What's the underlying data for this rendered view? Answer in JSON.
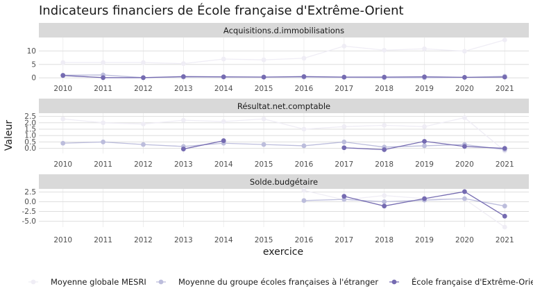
{
  "chart_data": {
    "type": "line",
    "title": "Indicateurs financiers de École française d'Extrême-Orient",
    "xlabel": "exercice",
    "ylabel": "Valeur",
    "x": [
      2010,
      2011,
      2012,
      2013,
      2014,
      2015,
      2016,
      2017,
      2018,
      2019,
      2020,
      2021
    ],
    "legend_position": "bottom",
    "colors": {
      "Moyenne globale MESRI": "#efedf5",
      "Moyenne du groupe écoles françaises à l'étranger": "#bcbddc",
      "École française d'Extrême-Orient": "#756bb1"
    },
    "panels": [
      {
        "title": "Acquisitions.d.immobilisations",
        "ylim": [
          -1.5,
          15
        ],
        "yticks": [
          0,
          5,
          10
        ],
        "series": [
          {
            "name": "Moyenne globale MESRI",
            "values": [
              5.7,
              5.7,
              5.7,
              5.3,
              7.0,
              6.7,
              7.3,
              11.8,
              10.3,
              10.8,
              9.9,
              14.1
            ]
          },
          {
            "name": "Moyenne du groupe écoles françaises à l'étranger",
            "values": [
              1.0,
              1.1,
              0.1,
              0.3,
              0.3,
              0.3,
              0.3,
              0.2,
              0.1,
              0.1,
              0.2,
              0.6
            ]
          },
          {
            "name": "École française d'Extrême-Orient",
            "values": [
              0.9,
              0.1,
              0.1,
              0.5,
              0.4,
              0.3,
              0.5,
              0.3,
              0.3,
              0.4,
              0.2,
              0.3
            ]
          }
        ]
      },
      {
        "title": "Résultat.net.comptable",
        "ylim": [
          -0.4,
          2.75
        ],
        "yticks": [
          0.0,
          0.5,
          1.0,
          1.5,
          2.0,
          2.5
        ],
        "series": [
          {
            "name": "Moyenne globale MESRI",
            "values": [
              2.3,
              2.0,
              1.9,
              2.2,
              2.1,
              2.3,
              1.5,
              1.7,
              1.8,
              1.7,
              2.4,
              -0.2
            ]
          },
          {
            "name": "Moyenne du groupe écoles françaises à l'étranger",
            "values": [
              0.4,
              0.5,
              0.3,
              0.15,
              0.4,
              0.3,
              0.2,
              0.5,
              0.1,
              0.2,
              0.3,
              -0.1
            ]
          },
          {
            "name": "École française d'Extrême-Orient",
            "values": [
              null,
              null,
              null,
              -0.05,
              0.6,
              null,
              null,
              0.05,
              -0.1,
              0.55,
              0.15,
              0.0
            ]
          }
        ]
      },
      {
        "title": "Solde.budgétaire",
        "ylim": [
          -6.5,
          3.3
        ],
        "yticks": [
          2.5,
          0.0,
          -2.5,
          -5.0
        ],
        "yticklabels": [
          "2.5",
          "0.0",
          "-2.5",
          "-5.0"
        ],
        "series": [
          {
            "name": "Moyenne globale MESRI",
            "values": [
              null,
              null,
              null,
              null,
              null,
              null,
              2.9,
              0.5,
              1.6,
              0.8,
              0.7,
              -6.5
            ]
          },
          {
            "name": "Moyenne du groupe écoles françaises à l'étranger",
            "values": [
              null,
              null,
              null,
              null,
              null,
              null,
              0.3,
              0.6,
              0.0,
              0.4,
              0.8,
              -1.1
            ]
          },
          {
            "name": "École française d'Extrême-Orient",
            "values": [
              null,
              null,
              null,
              null,
              null,
              null,
              null,
              1.4,
              -1.1,
              0.8,
              2.6,
              -3.7
            ]
          }
        ]
      }
    ],
    "legend": [
      "Moyenne globale MESRI",
      "Moyenne du groupe écoles françaises à l'étranger",
      "École française d'Extrême-Orient"
    ]
  }
}
